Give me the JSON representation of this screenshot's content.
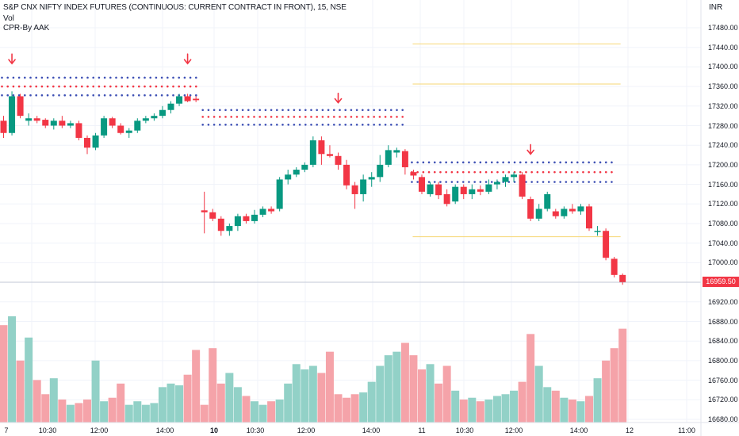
{
  "header": {
    "title": "S&P CNX NIFTY INDEX FUTURES (CONTINUOUS: CURRENT CONTRACT IN FRONT), 15, NSE",
    "vol_label": "Vol",
    "indicator_label": "CPR-By AAK",
    "currency": "INR"
  },
  "price_axis": {
    "ticks": [
      "17480.00",
      "17440.00",
      "17400.00",
      "17360.00",
      "17320.00",
      "17280.00",
      "17240.00",
      "17200.00",
      "17160.00",
      "17120.00",
      "17080.00",
      "17040.00",
      "17000.00",
      "16960.00",
      "16920.00",
      "16880.00",
      "16840.00",
      "16800.00",
      "16760.00",
      "16720.00",
      "16680.00"
    ],
    "last_price": "16959.50"
  },
  "time_axis": {
    "labels": [
      {
        "text": "7",
        "bold": false
      },
      {
        "text": "10:30",
        "bold": false
      },
      {
        "text": "12:00",
        "bold": false
      },
      {
        "text": "14:00",
        "bold": false
      },
      {
        "text": "10",
        "bold": true
      },
      {
        "text": "10:30",
        "bold": false
      },
      {
        "text": "12:00",
        "bold": false
      },
      {
        "text": "14:00",
        "bold": false
      },
      {
        "text": "11",
        "bold": false
      },
      {
        "text": "10:30",
        "bold": false
      },
      {
        "text": "12:00",
        "bold": false
      },
      {
        "text": "14:00",
        "bold": false
      },
      {
        "text": "12",
        "bold": false
      },
      {
        "text": "11:00",
        "bold": false
      }
    ]
  },
  "colors": {
    "up": "#089981",
    "down": "#f23645",
    "vol_up": "#92d1c7",
    "vol_down": "#f5a3a9",
    "cpr_blue": "#3f51b5",
    "cpr_red": "#f23645",
    "level_line": "#f7d774",
    "grid": "#f0f3fa"
  },
  "chart_data": {
    "type": "candlestick",
    "interval": "15",
    "ylim": [
      16660,
      17520
    ],
    "candles": [
      {
        "o": 17290,
        "h": 17300,
        "l": 17255,
        "c": 17265
      },
      {
        "o": 17265,
        "h": 17350,
        "l": 17260,
        "c": 17340
      },
      {
        "o": 17340,
        "h": 17345,
        "l": 17295,
        "c": 17300
      },
      {
        "o": 17290,
        "h": 17305,
        "l": 17280,
        "c": 17295
      },
      {
        "o": 17295,
        "h": 17300,
        "l": 17285,
        "c": 17290
      },
      {
        "o": 17292,
        "h": 17295,
        "l": 17275,
        "c": 17280
      },
      {
        "o": 17280,
        "h": 17295,
        "l": 17272,
        "c": 17290
      },
      {
        "o": 17290,
        "h": 17300,
        "l": 17275,
        "c": 17280
      },
      {
        "o": 17280,
        "h": 17290,
        "l": 17275,
        "c": 17285
      },
      {
        "o": 17285,
        "h": 17290,
        "l": 17250,
        "c": 17255
      },
      {
        "o": 17255,
        "h": 17260,
        "l": 17222,
        "c": 17235
      },
      {
        "o": 17235,
        "h": 17265,
        "l": 17230,
        "c": 17260
      },
      {
        "o": 17260,
        "h": 17300,
        "l": 17255,
        "c": 17295
      },
      {
        "o": 17295,
        "h": 17298,
        "l": 17275,
        "c": 17280
      },
      {
        "o": 17280,
        "h": 17285,
        "l": 17262,
        "c": 17265
      },
      {
        "o": 17265,
        "h": 17275,
        "l": 17255,
        "c": 17270
      },
      {
        "o": 17270,
        "h": 17295,
        "l": 17265,
        "c": 17290
      },
      {
        "o": 17290,
        "h": 17300,
        "l": 17285,
        "c": 17295
      },
      {
        "o": 17295,
        "h": 17305,
        "l": 17290,
        "c": 17300
      },
      {
        "o": 17300,
        "h": 17320,
        "l": 17295,
        "c": 17312
      },
      {
        "o": 17312,
        "h": 17330,
        "l": 17305,
        "c": 17325
      },
      {
        "o": 17325,
        "h": 17345,
        "l": 17320,
        "c": 17340
      },
      {
        "o": 17340,
        "h": 17345,
        "l": 17328,
        "c": 17330
      },
      {
        "o": 17335,
        "h": 17340,
        "l": 17328,
        "c": 17332
      },
      {
        "o": 17107,
        "h": 17145,
        "l": 17060,
        "c": 17103
      },
      {
        "o": 17103,
        "h": 17110,
        "l": 17085,
        "c": 17090
      },
      {
        "o": 17090,
        "h": 17095,
        "l": 17055,
        "c": 17065
      },
      {
        "o": 17065,
        "h": 17080,
        "l": 17055,
        "c": 17075
      },
      {
        "o": 17075,
        "h": 17100,
        "l": 17065,
        "c": 17095
      },
      {
        "o": 17095,
        "h": 17100,
        "l": 17080,
        "c": 17085
      },
      {
        "o": 17085,
        "h": 17108,
        "l": 17080,
        "c": 17098
      },
      {
        "o": 17098,
        "h": 17115,
        "l": 17093,
        "c": 17110
      },
      {
        "o": 17110,
        "h": 17115,
        "l": 17100,
        "c": 17105
      },
      {
        "o": 17110,
        "h": 17175,
        "l": 17105,
        "c": 17170
      },
      {
        "o": 17170,
        "h": 17190,
        "l": 17160,
        "c": 17180
      },
      {
        "o": 17180,
        "h": 17195,
        "l": 17175,
        "c": 17190
      },
      {
        "o": 17190,
        "h": 17205,
        "l": 17185,
        "c": 17200
      },
      {
        "o": 17200,
        "h": 17258,
        "l": 17195,
        "c": 17250
      },
      {
        "o": 17250,
        "h": 17258,
        "l": 17200,
        "c": 17222
      },
      {
        "o": 17222,
        "h": 17240,
        "l": 17215,
        "c": 17218
      },
      {
        "o": 17218,
        "h": 17225,
        "l": 17190,
        "c": 17200
      },
      {
        "o": 17200,
        "h": 17210,
        "l": 17150,
        "c": 17158
      },
      {
        "o": 17158,
        "h": 17165,
        "l": 17110,
        "c": 17140
      },
      {
        "o": 17140,
        "h": 17180,
        "l": 17125,
        "c": 17170
      },
      {
        "o": 17170,
        "h": 17185,
        "l": 17155,
        "c": 17175
      },
      {
        "o": 17175,
        "h": 17220,
        "l": 17165,
        "c": 17200
      },
      {
        "o": 17200,
        "h": 17240,
        "l": 17195,
        "c": 17230
      },
      {
        "o": 17225,
        "h": 17235,
        "l": 17215,
        "c": 17230
      },
      {
        "o": 17228,
        "h": 17232,
        "l": 17180,
        "c": 17195
      },
      {
        "o": 17185,
        "h": 17190,
        "l": 17170,
        "c": 17178
      },
      {
        "o": 17175,
        "h": 17180,
        "l": 17140,
        "c": 17145
      },
      {
        "o": 17140,
        "h": 17165,
        "l": 17135,
        "c": 17160
      },
      {
        "o": 17160,
        "h": 17165,
        "l": 17130,
        "c": 17138
      },
      {
        "o": 17140,
        "h": 17150,
        "l": 17115,
        "c": 17120
      },
      {
        "o": 17125,
        "h": 17160,
        "l": 17120,
        "c": 17155
      },
      {
        "o": 17155,
        "h": 17160,
        "l": 17130,
        "c": 17140
      },
      {
        "o": 17140,
        "h": 17160,
        "l": 17130,
        "c": 17150
      },
      {
        "o": 17150,
        "h": 17158,
        "l": 17138,
        "c": 17145
      },
      {
        "o": 17145,
        "h": 17170,
        "l": 17140,
        "c": 17160
      },
      {
        "o": 17160,
        "h": 17170,
        "l": 17150,
        "c": 17165
      },
      {
        "o": 17165,
        "h": 17180,
        "l": 17155,
        "c": 17175
      },
      {
        "o": 17175,
        "h": 17185,
        "l": 17165,
        "c": 17180
      },
      {
        "o": 17180,
        "h": 17185,
        "l": 17130,
        "c": 17135
      },
      {
        "o": 17130,
        "h": 17135,
        "l": 17085,
        "c": 17090
      },
      {
        "o": 17090,
        "h": 17120,
        "l": 17085,
        "c": 17110
      },
      {
        "o": 17110,
        "h": 17145,
        "l": 17105,
        "c": 17140
      },
      {
        "o": 17105,
        "h": 17110,
        "l": 17090,
        "c": 17095
      },
      {
        "o": 17095,
        "h": 17115,
        "l": 17090,
        "c": 17110
      },
      {
        "o": 17110,
        "h": 17120,
        "l": 17100,
        "c": 17105
      },
      {
        "o": 17105,
        "h": 17120,
        "l": 17098,
        "c": 17115
      },
      {
        "o": 17115,
        "h": 17120,
        "l": 17065,
        "c": 17070
      },
      {
        "o": 17065,
        "h": 17075,
        "l": 17055,
        "c": 17065
      },
      {
        "o": 17065,
        "h": 17070,
        "l": 17005,
        "c": 17010
      },
      {
        "o": 17008,
        "h": 17012,
        "l": 16970,
        "c": 16975
      },
      {
        "o": 16975,
        "h": 16978,
        "l": 16955,
        "c": 16960
      }
    ],
    "volume_relative": [
      55,
      60,
      35,
      48,
      24,
      16,
      25,
      13,
      10,
      11,
      13,
      35,
      12,
      14,
      22,
      10,
      12,
      10,
      11,
      20,
      22,
      21,
      27,
      41,
      10,
      42,
      22,
      28,
      20,
      15,
      12,
      10,
      12,
      13,
      22,
      33,
      30,
      32,
      28,
      40,
      16,
      14,
      16,
      17,
      23,
      32,
      38,
      40,
      45,
      38,
      30,
      33,
      22,
      32,
      18,
      13,
      14,
      12,
      13,
      15,
      16,
      18,
      23,
      50,
      32,
      20,
      18,
      14,
      13,
      12,
      15,
      25,
      35,
      42,
      53
    ]
  },
  "cpr": {
    "days": [
      {
        "from": 0,
        "to": 23,
        "levels": [
          17378,
          17360,
          17342
        ]
      },
      {
        "from": 24,
        "to": 48,
        "levels": [
          17312,
          17298,
          17282
        ]
      },
      {
        "from": 49,
        "to": 73,
        "levels": [
          17205,
          17185,
          17165
        ]
      }
    ],
    "yellow_lines": [
      17447,
      17365,
      17053
    ],
    "arrows": [
      {
        "candle": 1,
        "price": 17410
      },
      {
        "candle": 22,
        "price": 17410
      },
      {
        "candle": 40,
        "price": 17330
      },
      {
        "candle": 63,
        "price": 17225
      }
    ]
  }
}
